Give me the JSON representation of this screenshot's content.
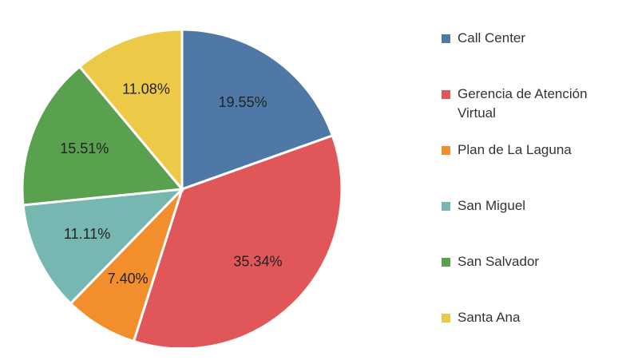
{
  "chart_data": {
    "type": "pie",
    "categories": [
      "Call Center",
      "Gerencia de Atención Virtual",
      "Plan de La Laguna",
      "San Miguel",
      "San Salvador",
      "Santa Ana"
    ],
    "values": [
      19.55,
      35.34,
      7.4,
      11.11,
      15.51,
      11.08
    ],
    "value_labels": [
      "19.55%",
      "35.34%",
      "7.40%",
      "11.11%",
      "15.51%",
      "11.08%"
    ],
    "colors": [
      "#4e79a6",
      "#e15759",
      "#f28e2b",
      "#76b7b2",
      "#59a14f",
      "#edc948"
    ],
    "legend": "right"
  }
}
